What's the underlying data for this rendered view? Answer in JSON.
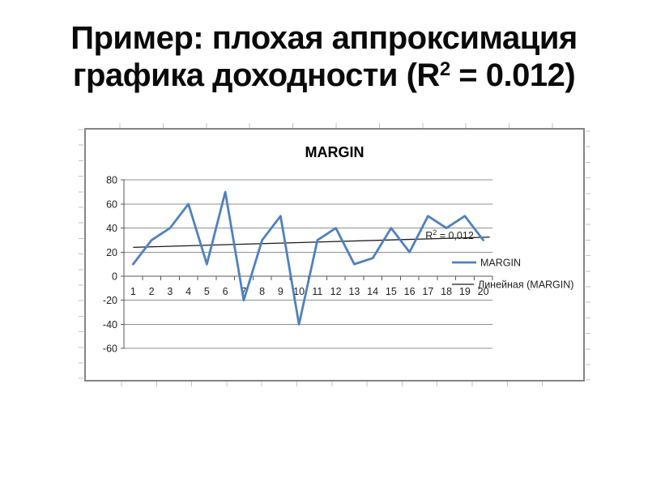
{
  "slide": {
    "title_line1": "Пример: плохая аппроксимация",
    "title_line2_pre": "графика доходности (R",
    "title_sup": "2",
    "title_line2_post": " = 0.012)"
  },
  "chart_data": {
    "type": "line",
    "title": "MARGIN",
    "categories": [
      1,
      2,
      3,
      4,
      5,
      6,
      7,
      8,
      9,
      10,
      11,
      12,
      13,
      14,
      15,
      16,
      17,
      18,
      19,
      20
    ],
    "series": [
      {
        "name": "MARGIN",
        "color": "#4F81BD",
        "values": [
          10,
          30,
          40,
          60,
          10,
          70,
          -20,
          30,
          50,
          -40,
          30,
          40,
          10,
          15,
          40,
          20,
          50,
          40,
          50,
          30
        ]
      }
    ],
    "trendline": {
      "name": "Линейная (MARGIN)",
      "color": "#1a1a1a",
      "start_value": 24,
      "end_value": 32.5,
      "annotation_pre": "R",
      "annotation_sup": "2",
      "annotation_post": " = 0,012"
    },
    "xlabel": "",
    "ylabel": "",
    "ylim": [
      -60,
      80
    ],
    "yticks": [
      80,
      60,
      40,
      20,
      0,
      -20,
      -40,
      -60
    ],
    "grid": true,
    "legend": [
      "MARGIN",
      "Линейная (MARGIN)"
    ],
    "legend_position": "right-middle"
  },
  "colors": {
    "series_blue": "#4F81BD",
    "trendline": "#1a1a1a",
    "gridline": "#8f8f8f",
    "axis": "#595959",
    "chart_border": "#848484",
    "ruler_tick": "#c2c2c2",
    "text": "#1f1f1f"
  }
}
